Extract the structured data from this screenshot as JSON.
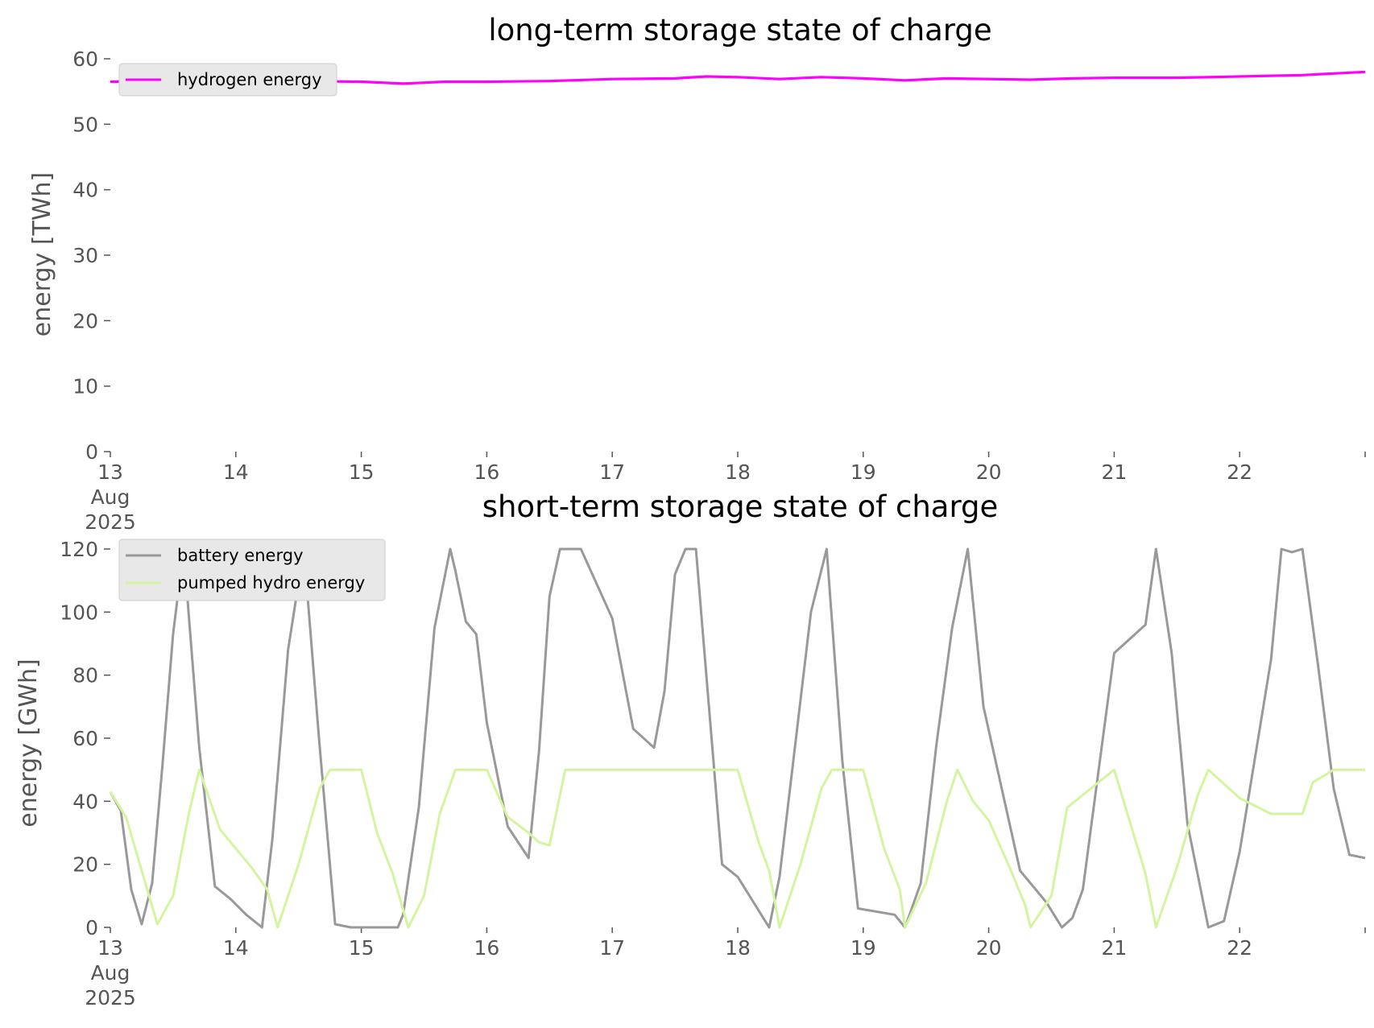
{
  "chart_data": [
    {
      "type": "line",
      "title": "long-term storage state of charge",
      "xlabel": "",
      "ylabel": "energy [TWh]",
      "xlim": [
        "2025-08-13",
        "2025-08-23"
      ],
      "ylim": [
        0,
        60
      ],
      "yticks": [
        0,
        10,
        20,
        30,
        40,
        50,
        60
      ],
      "xtick_labels": [
        [
          "13",
          "Aug",
          "2025"
        ],
        [
          "14"
        ],
        [
          "15"
        ],
        [
          "16"
        ],
        [
          "17"
        ],
        [
          "18"
        ],
        [
          "19"
        ],
        [
          "20"
        ],
        [
          "21"
        ],
        [
          "22"
        ]
      ],
      "grid": false,
      "legend": "upper left",
      "x": [
        "2025-08-13T00:00",
        "2025-08-13T12:00",
        "2025-08-14T00:00",
        "2025-08-14T12:00",
        "2025-08-15T00:00",
        "2025-08-15T08:00",
        "2025-08-15T16:00",
        "2025-08-16T00:00",
        "2025-08-16T12:00",
        "2025-08-17T00:00",
        "2025-08-17T12:00",
        "2025-08-17T18:00",
        "2025-08-18T00:00",
        "2025-08-18T08:00",
        "2025-08-18T16:00",
        "2025-08-19T00:00",
        "2025-08-19T08:00",
        "2025-08-19T16:00",
        "2025-08-20T00:00",
        "2025-08-20T08:00",
        "2025-08-20T16:00",
        "2025-08-21T00:00",
        "2025-08-21T12:00",
        "2025-08-22T00:00",
        "2025-08-22T12:00",
        "2025-08-23T00:00"
      ],
      "series": [
        {
          "name": "hydrogen energy",
          "color": "#ff00ff",
          "values": [
            56.5,
            56.6,
            56.6,
            56.6,
            56.5,
            56.2,
            56.5,
            56.5,
            56.6,
            56.9,
            57.0,
            57.3,
            57.2,
            56.9,
            57.2,
            57.0,
            56.7,
            57.0,
            56.9,
            56.8,
            57.0,
            57.1,
            57.1,
            57.3,
            57.5,
            58.0
          ]
        }
      ]
    },
    {
      "type": "line",
      "title": "short-term storage state of charge",
      "xlabel": "",
      "ylabel": "energy [GWh]",
      "xlim": [
        "2025-08-13",
        "2025-08-23"
      ],
      "ylim": [
        0,
        120
      ],
      "yticks": [
        0,
        20,
        40,
        60,
        80,
        100,
        120
      ],
      "xtick_labels": [
        [
          "13",
          "Aug",
          "2025"
        ],
        [
          "14"
        ],
        [
          "15"
        ],
        [
          "16"
        ],
        [
          "17"
        ],
        [
          "18"
        ],
        [
          "19"
        ],
        [
          "20"
        ],
        [
          "21"
        ],
        [
          "22"
        ]
      ],
      "grid": false,
      "legend": "upper left",
      "series": [
        {
          "name": "battery energy",
          "color": "#999999",
          "x": [
            "2025-08-13T00:00",
            "2025-08-13T02:00",
            "2025-08-13T04:00",
            "2025-08-13T06:00",
            "2025-08-13T08:00",
            "2025-08-13T10:00",
            "2025-08-13T12:00",
            "2025-08-13T14:00",
            "2025-08-13T17:00",
            "2025-08-13T20:00",
            "2025-08-13T23:00",
            "2025-08-14T02:00",
            "2025-08-14T05:00",
            "2025-08-14T07:00",
            "2025-08-14T08:00",
            "2025-08-14T10:00",
            "2025-08-14T13:00",
            "2025-08-14T16:00",
            "2025-08-14T19:00",
            "2025-08-14T22:00",
            "2025-08-15T00:00",
            "2025-08-15T07:00",
            "2025-08-15T08:00",
            "2025-08-15T11:00",
            "2025-08-15T14:00",
            "2025-08-15T17:00",
            "2025-08-15T18:00",
            "2025-08-15T20:00",
            "2025-08-15T22:00",
            "2025-08-16T00:00",
            "2025-08-16T04:00",
            "2025-08-16T08:00",
            "2025-08-16T10:00",
            "2025-08-16T12:00",
            "2025-08-16T14:00",
            "2025-08-16T16:00",
            "2025-08-16T18:00",
            "2025-08-17T00:00",
            "2025-08-17T04:00",
            "2025-08-17T08:00",
            "2025-08-17T10:00",
            "2025-08-17T12:00",
            "2025-08-17T14:00",
            "2025-08-17T16:00",
            "2025-08-17T18:00",
            "2025-08-17T21:00",
            "2025-08-18T00:00",
            "2025-08-18T06:00",
            "2025-08-18T08:00",
            "2025-08-18T11:00",
            "2025-08-18T14:00",
            "2025-08-18T17:00",
            "2025-08-18T20:00",
            "2025-08-18T23:00",
            "2025-08-19T06:00",
            "2025-08-19T08:00",
            "2025-08-19T11:00",
            "2025-08-19T14:00",
            "2025-08-19T17:00",
            "2025-08-19T20:00",
            "2025-08-19T23:00",
            "2025-08-20T06:00",
            "2025-08-20T08:00",
            "2025-08-20T11:00",
            "2025-08-20T14:00",
            "2025-08-20T16:00",
            "2025-08-20T18:00",
            "2025-08-20T20:00",
            "2025-08-21T00:00",
            "2025-08-21T06:00",
            "2025-08-21T08:00",
            "2025-08-21T11:00",
            "2025-08-21T14:00",
            "2025-08-21T18:00",
            "2025-08-21T21:00",
            "2025-08-22T00:00",
            "2025-08-22T06:00",
            "2025-08-22T08:00",
            "2025-08-22T10:00",
            "2025-08-22T12:00",
            "2025-08-22T15:00",
            "2025-08-22T18:00",
            "2025-08-22T21:00",
            "2025-08-23T00:00"
          ],
          "values": [
            43,
            37,
            12,
            1,
            14,
            52,
            93,
            120,
            57,
            13,
            9,
            4,
            0,
            28,
            48,
            88,
            120,
            58,
            1,
            0,
            0,
            0,
            4,
            38,
            95,
            120,
            113,
            97,
            93,
            65,
            32,
            22,
            56,
            105,
            120,
            120,
            120,
            98,
            63,
            57,
            75,
            112,
            120,
            120,
            80,
            20,
            16,
            0,
            16,
            58,
            100,
            120,
            53,
            6,
            4,
            0,
            14,
            58,
            95,
            120,
            70,
            18,
            14,
            8,
            0,
            3,
            12,
            37,
            87,
            96,
            120,
            87,
            33,
            0,
            2,
            24,
            85,
            120,
            119,
            120,
            83,
            44,
            23,
            22
          ]
        },
        {
          "name": "pumped hydro energy",
          "color": "#d4f5a0",
          "x": [
            "2025-08-13T00:00",
            "2025-08-13T03:00",
            "2025-08-13T06:00",
            "2025-08-13T09:00",
            "2025-08-13T12:00",
            "2025-08-13T15:00",
            "2025-08-13T17:00",
            "2025-08-13T21:00",
            "2025-08-14T00:00",
            "2025-08-14T03:00",
            "2025-08-14T06:00",
            "2025-08-14T08:00",
            "2025-08-14T12:00",
            "2025-08-14T16:00",
            "2025-08-14T18:00",
            "2025-08-15T00:00",
            "2025-08-15T03:00",
            "2025-08-15T06:00",
            "2025-08-15T09:00",
            "2025-08-15T12:00",
            "2025-08-15T15:00",
            "2025-08-15T18:00",
            "2025-08-16T00:00",
            "2025-08-16T04:00",
            "2025-08-16T08:00",
            "2025-08-16T10:00",
            "2025-08-16T12:00",
            "2025-08-16T15:00",
            "2025-08-16T18:00",
            "2025-08-17T00:00",
            "2025-08-17T12:00",
            "2025-08-18T00:00",
            "2025-08-18T04:00",
            "2025-08-18T06:00",
            "2025-08-18T08:00",
            "2025-08-18T12:00",
            "2025-08-18T16:00",
            "2025-08-18T18:00",
            "2025-08-19T00:00",
            "2025-08-19T04:00",
            "2025-08-19T07:00",
            "2025-08-19T08:00",
            "2025-08-19T12:00",
            "2025-08-19T16:00",
            "2025-08-19T18:00",
            "2025-08-19T21:00",
            "2025-08-20T00:00",
            "2025-08-20T04:00",
            "2025-08-20T07:00",
            "2025-08-20T08:00",
            "2025-08-20T12:00",
            "2025-08-20T15:00",
            "2025-08-20T18:00",
            "2025-08-21T00:00",
            "2025-08-21T06:00",
            "2025-08-21T08:00",
            "2025-08-21T12:00",
            "2025-08-21T16:00",
            "2025-08-21T18:00",
            "2025-08-22T00:00",
            "2025-08-22T06:00",
            "2025-08-22T12:00",
            "2025-08-22T14:00",
            "2025-08-22T18:00",
            "2025-08-23T00:00"
          ],
          "values": [
            43,
            35,
            18,
            1,
            10,
            36,
            50,
            31,
            25,
            19,
            12,
            0,
            20,
            44,
            50,
            50,
            30,
            17,
            0,
            10,
            36,
            50,
            50,
            35,
            30,
            27,
            26,
            50,
            50,
            50,
            50,
            50,
            27,
            18,
            0,
            20,
            44,
            50,
            50,
            25,
            12,
            0,
            14,
            40,
            50,
            40,
            34,
            19,
            7,
            0,
            10,
            38,
            42,
            50,
            17,
            0,
            19,
            42,
            50,
            41,
            36,
            36,
            46,
            50,
            50
          ]
        }
      ]
    }
  ]
}
